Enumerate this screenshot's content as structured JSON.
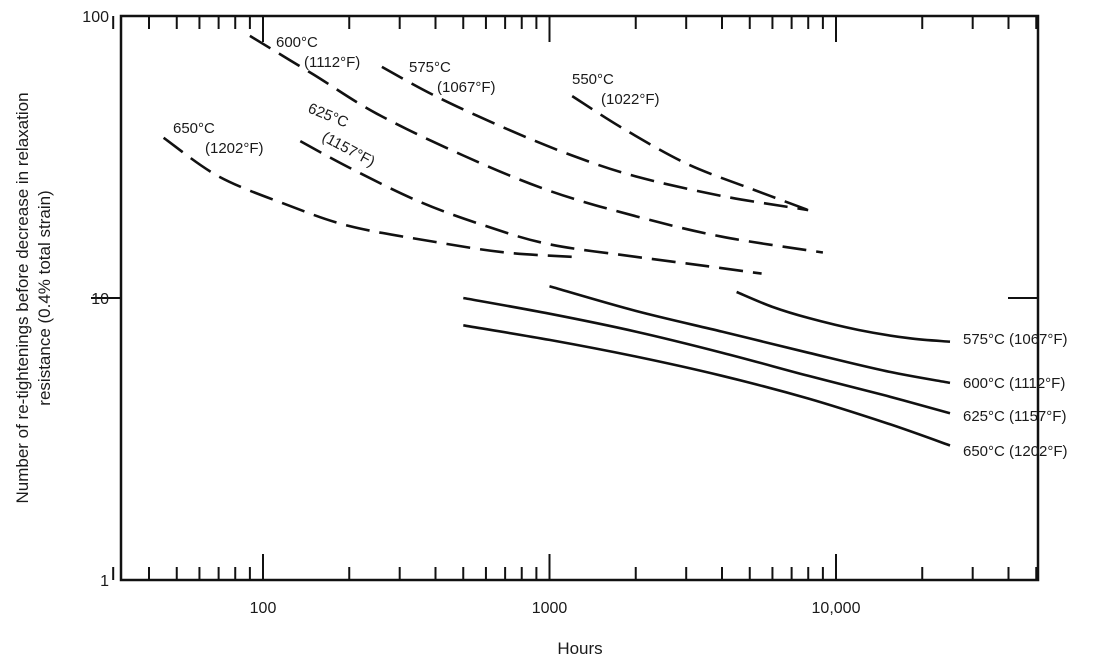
{
  "chart_data": {
    "type": "line",
    "xlabel": "Hours",
    "ylabel": "Number of re-tightenings before decrease in relaxation resistance (0.4% total strain)",
    "ylabel_lines": [
      "Number of re-tightenings before decrease in relaxation",
      "resistance (0.4% total strain)"
    ],
    "x_scale": "log",
    "y_scale": "log",
    "xlim": [
      30,
      50000
    ],
    "ylim": [
      1,
      100
    ],
    "x_tick_labels": [
      {
        "value": 100,
        "label": "100"
      },
      {
        "value": 1000,
        "label": "1000"
      },
      {
        "value": 10000,
        "label": "10,000"
      }
    ],
    "y_tick_labels": [
      {
        "value": 1,
        "label": "1"
      },
      {
        "value": 10,
        "label": "10"
      },
      {
        "value": 100,
        "label": "100"
      }
    ],
    "grid": false,
    "legend": "none",
    "series": [
      {
        "style": "dashed",
        "label_lines": [
          "600°C",
          "(1112°F)"
        ],
        "points": [
          [
            90,
            85
          ],
          [
            150,
            62
          ],
          [
            250,
            45
          ],
          [
            500,
            32
          ],
          [
            1000,
            24
          ],
          [
            2000,
            19.5
          ],
          [
            4000,
            16.5
          ],
          [
            9000,
            14.5
          ]
        ]
      },
      {
        "style": "dashed",
        "label_lines": [
          "575°C",
          "(1067°F)"
        ],
        "points": [
          [
            260,
            66
          ],
          [
            400,
            52
          ],
          [
            700,
            40
          ],
          [
            1200,
            32
          ],
          [
            2000,
            27
          ],
          [
            4000,
            23
          ],
          [
            8000,
            20.5
          ]
        ]
      },
      {
        "style": "dashed",
        "label_lines": [
          "550°C",
          "(1022°F)"
        ],
        "points": [
          [
            1200,
            52
          ],
          [
            1800,
            40
          ],
          [
            3000,
            30
          ],
          [
            5000,
            24.5
          ],
          [
            8000,
            20.5
          ]
        ]
      },
      {
        "style": "dashed",
        "label_lines": [
          "650°C",
          "(1202°F)"
        ],
        "points": [
          [
            45,
            37
          ],
          [
            70,
            27
          ],
          [
            120,
            21.5
          ],
          [
            200,
            18
          ],
          [
            400,
            15.8
          ],
          [
            700,
            14.5
          ],
          [
            1200,
            14
          ]
        ]
      },
      {
        "style": "dashed",
        "label_lines": [
          "625°C",
          "(1157°F)"
        ],
        "points": [
          [
            135,
            36
          ],
          [
            200,
            29
          ],
          [
            350,
            22
          ],
          [
            600,
            18
          ],
          [
            1000,
            15.5
          ],
          [
            2000,
            14
          ],
          [
            3500,
            13
          ],
          [
            5500,
            12.2
          ]
        ]
      },
      {
        "style": "solid",
        "label": "575°C (1067°F)",
        "points": [
          [
            4500,
            10.5
          ],
          [
            6000,
            9.3
          ],
          [
            8000,
            8.5
          ],
          [
            12000,
            7.7
          ],
          [
            18000,
            7.2
          ],
          [
            25000,
            7
          ]
        ]
      },
      {
        "style": "solid",
        "label": "600°C (1112°F)",
        "points": [
          [
            1000,
            11
          ],
          [
            2000,
            9
          ],
          [
            4000,
            7.6
          ],
          [
            8000,
            6.4
          ],
          [
            15000,
            5.5
          ],
          [
            25000,
            5
          ]
        ]
      },
      {
        "style": "solid",
        "label": "625°C (1157°F)",
        "points": [
          [
            500,
            10
          ],
          [
            1000,
            8.8
          ],
          [
            2000,
            7.6
          ],
          [
            4000,
            6.4
          ],
          [
            8000,
            5.3
          ],
          [
            15000,
            4.5
          ],
          [
            25000,
            3.9
          ]
        ]
      },
      {
        "style": "solid",
        "label": "650°C (1202°F)",
        "points": [
          [
            500,
            8
          ],
          [
            1000,
            7.1
          ],
          [
            2000,
            6.2
          ],
          [
            4000,
            5.3
          ],
          [
            8000,
            4.4
          ],
          [
            15000,
            3.6
          ],
          [
            25000,
            3
          ]
        ]
      }
    ]
  }
}
